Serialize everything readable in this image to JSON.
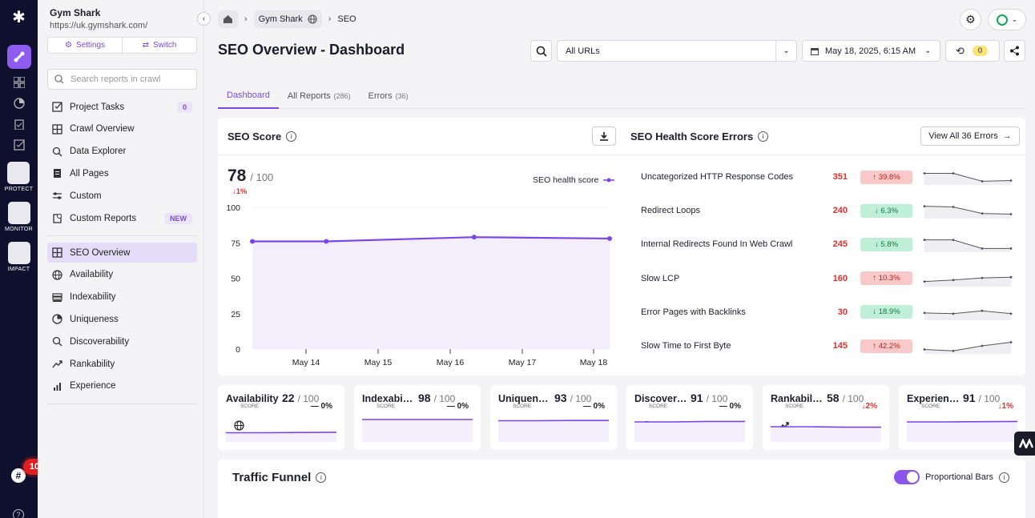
{
  "sidebar": {
    "project_name": "Gym Shark",
    "project_url": "https://uk.gymshark.com/",
    "settings_label": "Settings",
    "switch_label": "Switch",
    "search_placeholder": "Search reports in crawl",
    "items_top": [
      {
        "label": "Project Tasks",
        "icon": "checkbox-icon",
        "count": "0"
      },
      {
        "label": "Crawl Overview",
        "icon": "grid-icon"
      },
      {
        "label": "Data Explorer",
        "icon": "search-icon"
      },
      {
        "label": "All Pages",
        "icon": "pages-icon"
      },
      {
        "label": "Custom",
        "icon": "sliders-icon"
      },
      {
        "label": "Custom Reports",
        "icon": "custom-report-icon",
        "tag": "NEW"
      }
    ],
    "items_seo": [
      {
        "label": "SEO Overview",
        "icon": "grid-icon",
        "active": true
      },
      {
        "label": "Availability",
        "icon": "globe-icon"
      },
      {
        "label": "Indexability",
        "icon": "stack-icon"
      },
      {
        "label": "Uniqueness",
        "icon": "pie-icon"
      },
      {
        "label": "Discoverability",
        "icon": "search-icon"
      },
      {
        "label": "Rankability",
        "icon": "trend-icon"
      },
      {
        "label": "Experience",
        "icon": "bars-icon"
      }
    ]
  },
  "rail": {
    "apps": [
      "PROTECT",
      "MONITOR",
      "IMPACT"
    ],
    "notification_count": "10"
  },
  "breadcrumb": {
    "project": "Gym Shark",
    "section": "SEO"
  },
  "header": {
    "title": "SEO Overview - Dashboard",
    "url_filter": "All URLs",
    "date": "May 18, 2025, 6:15 AM",
    "pending_count": "0"
  },
  "tabs": [
    {
      "label": "Dashboard",
      "count": ""
    },
    {
      "label": "All Reports",
      "count": "(286)"
    },
    {
      "label": "Errors",
      "count": "(36)"
    }
  ],
  "seo_score": {
    "title": "SEO Score",
    "score": "78",
    "out_of": "/ 100",
    "change": "1%",
    "legend": "SEO health score"
  },
  "chart_data": {
    "type": "line",
    "series": [
      {
        "name": "SEO health score",
        "values": [
          76,
          76,
          79,
          78
        ]
      }
    ],
    "x": [
      "2025-05-13",
      "2025-05-14",
      "2025-05-16",
      "2025-05-18"
    ],
    "xticks": [
      "May 14",
      "May 15",
      "May 16",
      "May 17",
      "May 18"
    ],
    "yticks": [
      "0",
      "25",
      "50",
      "75",
      "100"
    ],
    "ylim": [
      0,
      100
    ],
    "color": "#7c45e8"
  },
  "health_errors": {
    "title": "SEO Health Score Errors",
    "view_all": "View All 36 Errors",
    "rows": [
      {
        "name": "Uncategorized HTTP Response Codes",
        "value": "351",
        "change": "↑ 39.8%",
        "dir": "up",
        "spark": [
          0.75,
          0.75,
          0.2,
          0.25
        ]
      },
      {
        "name": "Redirect Loops",
        "value": "240",
        "change": "↓ 6.3%",
        "dir": "dn",
        "spark": [
          0.8,
          0.75,
          0.3,
          0.25
        ]
      },
      {
        "name": "Internal Redirects Found In Web Crawl",
        "value": "245",
        "change": "↓ 5.8%",
        "dir": "dn",
        "spark": [
          0.8,
          0.8,
          0.2,
          0.2
        ]
      },
      {
        "name": "Slow LCP",
        "value": "160",
        "change": "↑ 10.3%",
        "dir": "up",
        "spark": [
          0.3,
          0.4,
          0.55,
          0.6
        ]
      },
      {
        "name": "Error Pages with Backlinks",
        "value": "30",
        "change": "↓ 18.9%",
        "dir": "dn",
        "spark": [
          0.45,
          0.4,
          0.6,
          0.4
        ]
      },
      {
        "name": "Slow Time to First Byte",
        "value": "145",
        "change": "↑ 42.2%",
        "dir": "up",
        "spark": [
          0.25,
          0.15,
          0.5,
          0.75
        ]
      }
    ]
  },
  "mini_cards": [
    {
      "name": "Availability",
      "icon": "globe-icon",
      "score": "22",
      "out_of": "/ 100",
      "label": "SCORE",
      "change": "— 0%",
      "dir": "flat",
      "line": [
        0.35,
        0.35,
        0.36,
        0.37
      ]
    },
    {
      "name": "Indexability",
      "icon": "stack-icon",
      "score": "98",
      "out_of": "/ 100",
      "label": "SCORE",
      "change": "— 0%",
      "dir": "flat",
      "line": [
        0.9,
        0.9,
        0.9,
        0.9
      ]
    },
    {
      "name": "Uniqueness",
      "icon": "pie-icon",
      "score": "93",
      "out_of": "/ 100",
      "label": "SCORE",
      "change": "— 0%",
      "dir": "flat",
      "line": [
        0.85,
        0.85,
        0.86,
        0.86
      ]
    },
    {
      "name": "Discoverability",
      "icon": "search-icon",
      "score": "91",
      "out_of": "/ 100",
      "label": "SCORE",
      "change": "— 0%",
      "dir": "flat",
      "line": [
        0.8,
        0.8,
        0.82,
        0.82
      ]
    },
    {
      "name": "Rankability",
      "icon": "trend-icon",
      "score": "58",
      "out_of": "/ 100",
      "label": "SCORE",
      "change": "2%",
      "dir": "dn",
      "line": [
        0.6,
        0.6,
        0.58,
        0.58
      ]
    },
    {
      "name": "Experience",
      "icon": "bars-icon",
      "score": "91",
      "out_of": "/ 100",
      "label": "SCORE",
      "change": "1%",
      "dir": "dn",
      "line": [
        0.8,
        0.8,
        0.81,
        0.82
      ]
    }
  ],
  "traffic_funnel": {
    "title": "Traffic Funnel",
    "toggle_label": "Proportional Bars",
    "toggle_on": true
  }
}
